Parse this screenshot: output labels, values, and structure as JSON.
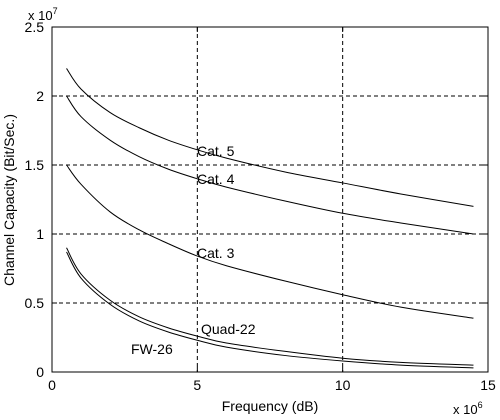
{
  "chart_data": {
    "type": "line",
    "xlabel": "Frequency (dB)",
    "ylabel": "Channel Capacity (Bit/Sec.)",
    "x_multiplier": {
      "base": "x 10",
      "exponent": "6"
    },
    "y_multiplier": {
      "base": "x 10",
      "exponent": "7"
    },
    "xlim": [
      0,
      15
    ],
    "ylim": [
      0,
      2.5
    ],
    "x_ticks": [
      "0",
      "5",
      "10",
      "15"
    ],
    "y_ticks": [
      "0",
      "0.5",
      "1",
      "1.5",
      "2",
      "2.5"
    ],
    "grid": true,
    "grid_style": "dashed",
    "line_color": "#000000",
    "series": [
      {
        "name": "Cat. 5",
        "x": [
          0.5,
          1,
          2,
          3,
          4,
          5,
          6,
          8,
          10,
          12,
          14.5
        ],
        "y": [
          2.2,
          2.05,
          1.88,
          1.77,
          1.68,
          1.61,
          1.55,
          1.45,
          1.37,
          1.29,
          1.2
        ]
      },
      {
        "name": "Cat. 4",
        "x": [
          0.5,
          1,
          2,
          3,
          4,
          5,
          6,
          8,
          10,
          12,
          14.5
        ],
        "y": [
          2.0,
          1.85,
          1.68,
          1.56,
          1.47,
          1.4,
          1.34,
          1.24,
          1.15,
          1.08,
          1.0
        ]
      },
      {
        "name": "Cat. 3",
        "x": [
          0.5,
          1,
          2,
          3,
          4,
          5,
          6,
          8,
          10,
          12,
          14.5
        ],
        "y": [
          1.5,
          1.36,
          1.16,
          1.03,
          0.93,
          0.84,
          0.77,
          0.66,
          0.56,
          0.47,
          0.39
        ]
      },
      {
        "name": "Quad-22",
        "x": [
          0.5,
          1,
          2,
          3,
          4,
          5,
          6,
          8,
          10,
          12,
          14.5
        ],
        "y": [
          0.9,
          0.71,
          0.52,
          0.4,
          0.32,
          0.26,
          0.21,
          0.15,
          0.1,
          0.07,
          0.05
        ]
      },
      {
        "name": "FW-26",
        "x": [
          0.5,
          1,
          2,
          3,
          4,
          5,
          6,
          8,
          10,
          12,
          14.5
        ],
        "y": [
          0.87,
          0.68,
          0.49,
          0.37,
          0.29,
          0.23,
          0.18,
          0.12,
          0.08,
          0.05,
          0.03
        ]
      }
    ],
    "labels": [
      "Cat. 5",
      "Cat. 4",
      "Cat. 3",
      "Quad-22",
      "FW-26"
    ]
  }
}
